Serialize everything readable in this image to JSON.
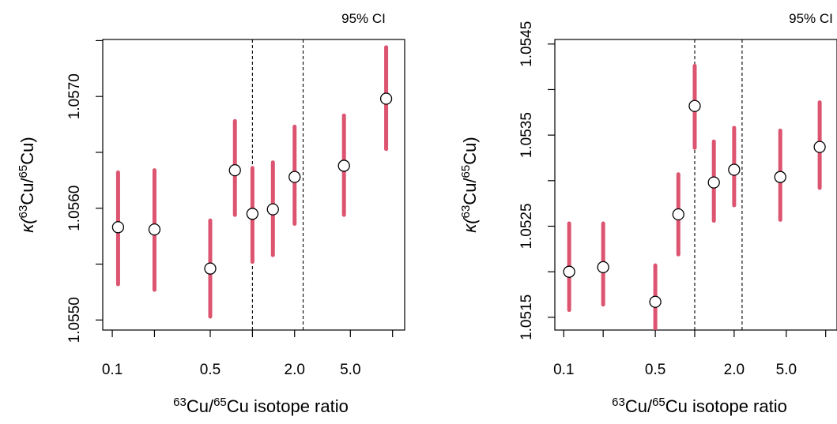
{
  "chart_data": [
    {
      "type": "scatter",
      "x_scale": "log",
      "ci_label": "95% CI",
      "xlabel": {
        "sup1": "63",
        "part1": "Cu/",
        "sup2": "65",
        "part2": "Cu isotope ratio"
      },
      "ylabel": {
        "pre": "κ(",
        "sup1": "63",
        "mid": "Cu/",
        "sup2": "65",
        "post": "Cu)"
      },
      "xlim": [
        0.0855,
        12.2
      ],
      "ylim": [
        1.05491,
        1.05751
      ],
      "x_ticks": [
        0.1,
        0.2,
        0.5,
        1.0,
        2.0,
        5.0,
        10.0
      ],
      "x_tick_labels": [
        "0.1",
        "",
        "0.5",
        "",
        "2.0",
        "5.0",
        ""
      ],
      "y_ticks": [
        1.055,
        1.0555,
        1.056,
        1.0565,
        1.057,
        1.0575
      ],
      "y_tick_labels": [
        "1.0550",
        "",
        "1.0560",
        "",
        "1.0570",
        ""
      ],
      "vlines": [
        1.0,
        2.3
      ],
      "series": [
        {
          "x": [
            0.11,
            0.2,
            0.5,
            0.75,
            1.0,
            1.4,
            2.0,
            4.5,
            9.0
          ],
          "y": [
            1.05583,
            1.05581,
            1.05546,
            1.05634,
            1.05595,
            1.05599,
            1.05628,
            1.05638,
            1.05698
          ],
          "lo": [
            1.05532,
            1.05527,
            1.05503,
            1.05594,
            1.05552,
            1.05558,
            1.05586,
            1.05594,
            1.05653
          ],
          "hi": [
            1.05632,
            1.05634,
            1.05589,
            1.05678,
            1.05636,
            1.05641,
            1.05673,
            1.05683,
            1.05744
          ]
        }
      ],
      "point_fill": "#ffffff",
      "ci_color": "#dc5470"
    },
    {
      "type": "scatter",
      "x_scale": "log",
      "ci_label": "95% CI",
      "xlabel": {
        "sup1": "63",
        "part1": "Cu/",
        "sup2": "65",
        "part2": "Cu isotope ratio"
      },
      "ylabel": {
        "pre": "κ(",
        "sup1": "63",
        "mid": "Cu/",
        "sup2": "65",
        "post": "Cu)"
      },
      "xlim": [
        0.0855,
        12.2
      ],
      "ylim": [
        1.05136,
        1.05455
      ],
      "x_ticks": [
        0.1,
        0.2,
        0.5,
        1.0,
        2.0,
        5.0,
        10.0
      ],
      "x_tick_labels": [
        "0.1",
        "",
        "0.5",
        "",
        "2.0",
        "5.0",
        ""
      ],
      "y_ticks": [
        1.0515,
        1.052,
        1.0525,
        1.053,
        1.0535,
        1.054,
        1.0545
      ],
      "y_tick_labels": [
        "1.0515",
        "",
        "1.0525",
        "",
        "1.0535",
        "",
        "1.0545"
      ],
      "vlines": [
        1.0,
        2.3
      ],
      "series": [
        {
          "x": [
            0.11,
            0.2,
            0.5,
            0.75,
            1.0,
            1.4,
            2.0,
            4.5,
            9.0
          ],
          "y": [
            1.052,
            1.05205,
            1.05167,
            1.05263,
            1.05382,
            1.05298,
            1.05312,
            1.05304,
            1.05337
          ],
          "lo": [
            1.05158,
            1.05164,
            1.05126,
            1.05219,
            1.05336,
            1.05256,
            1.05273,
            1.05257,
            1.05292
          ],
          "hi": [
            1.05253,
            1.05253,
            1.05207,
            1.05307,
            1.05426,
            1.05343,
            1.05358,
            1.05355,
            1.05386
          ]
        }
      ],
      "point_fill": "#ffffff",
      "ci_color": "#dc5470"
    }
  ]
}
